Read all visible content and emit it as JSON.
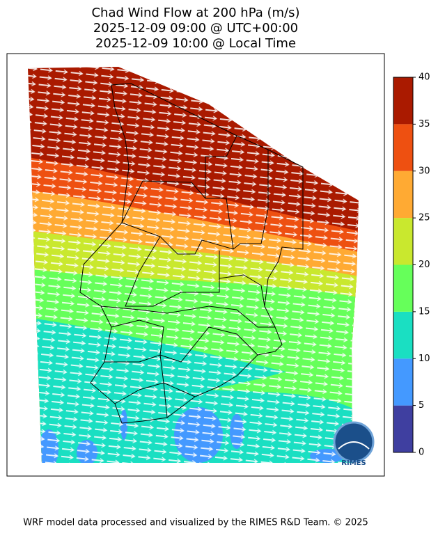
{
  "title": [
    "Chad Wind Flow at 200 hPa (m/s)",
    "2025-12-09 09:00 @ UTC+00:00",
    "2025-12-09 10:00 @ Local Time"
  ],
  "colorbar": {
    "ticks": [
      0,
      5,
      10,
      15,
      20,
      25,
      30,
      35,
      40
    ],
    "colors": [
      "#3f3fa0",
      "#4499ff",
      "#1adfc2",
      "#66ff5a",
      "#c9e82e",
      "#ffaa33",
      "#ee5011",
      "#aa1a00"
    ]
  },
  "logo_text": "RIMES",
  "footer": "WRF model data processed and visualized by the RIMES R&D Team. © 2025"
}
